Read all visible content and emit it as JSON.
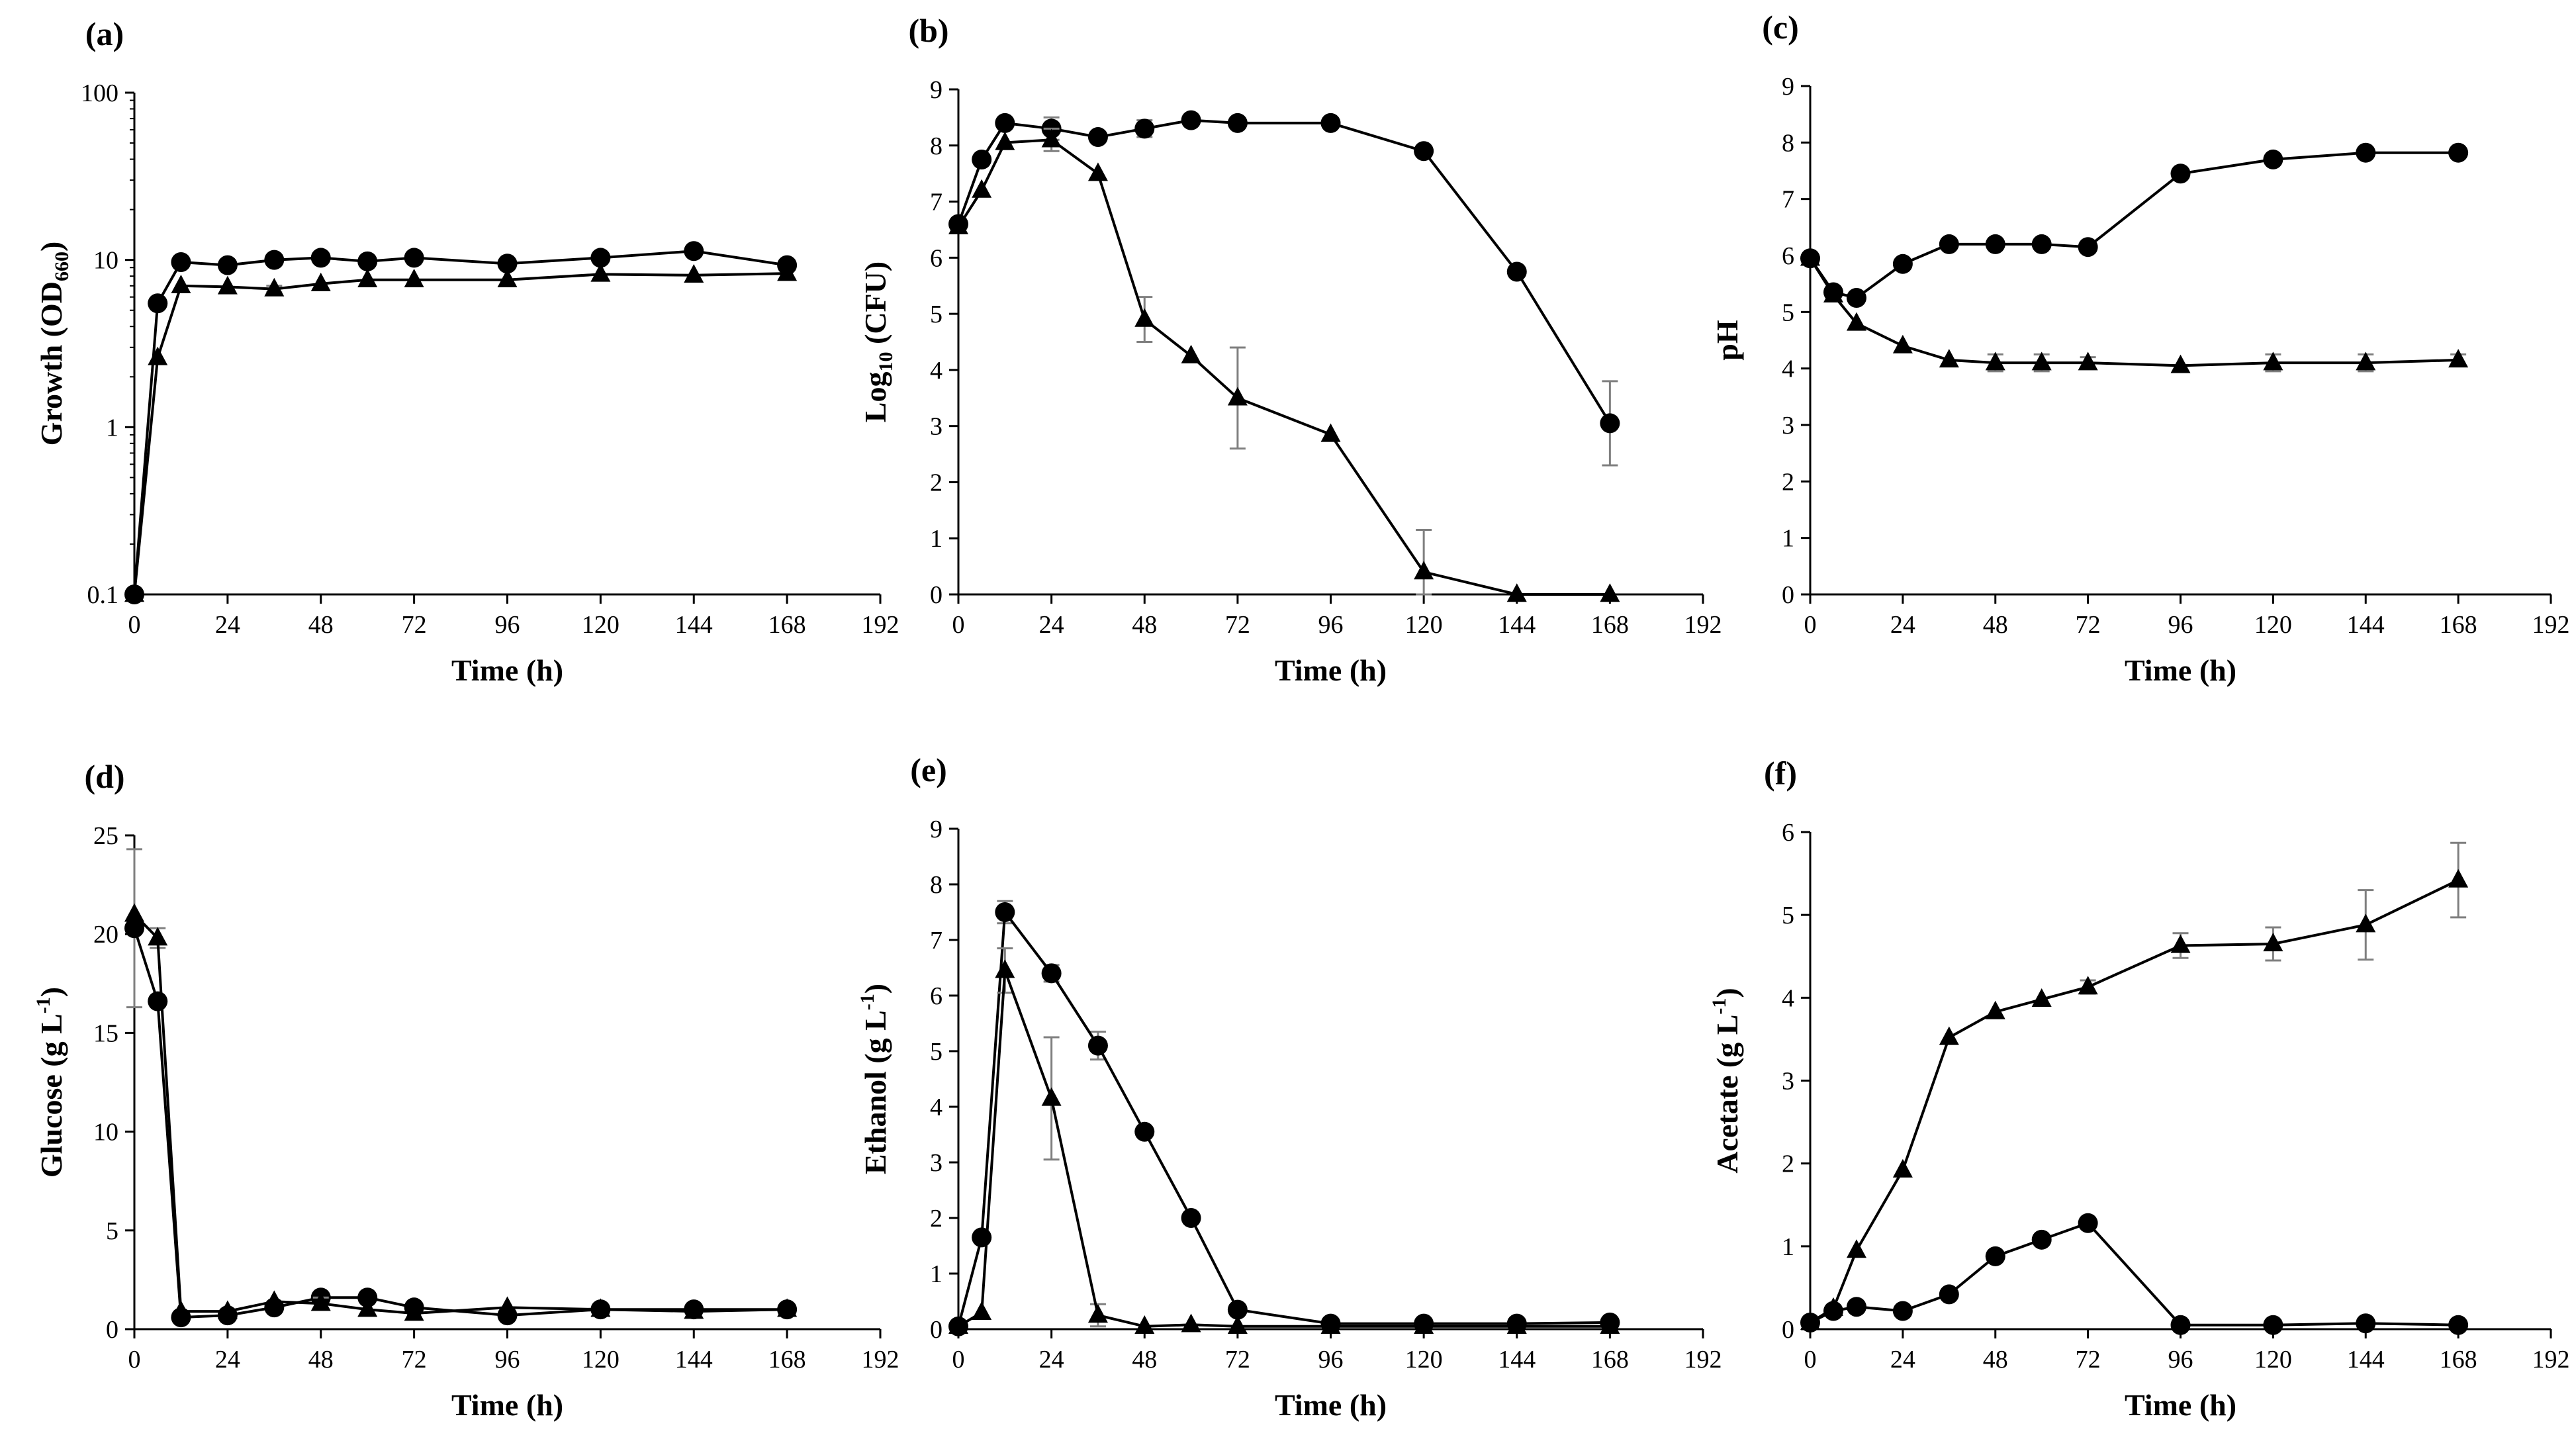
{
  "figure": {
    "colors": {
      "line": "#000000",
      "error_bar": "#7f7f7f",
      "marker": "#000000",
      "background": "#ffffff"
    }
  },
  "chart_data": [
    {
      "panel_label": "(a)",
      "type": "line",
      "ylabel_main": "Growth (OD",
      "ylabel_sub": "660",
      "ylabel_tail": ")",
      "xlabel": "Time (h)",
      "yscale": "log",
      "ylim": [
        0.1,
        100
      ],
      "yticks": [
        0.1,
        1,
        10,
        100
      ],
      "ytick_labels": [
        "0.1",
        "1",
        "10",
        "100"
      ],
      "xlim": [
        0,
        192
      ],
      "xticks": [
        0,
        24,
        48,
        72,
        96,
        120,
        144,
        168,
        192
      ],
      "xtick_labels": [
        "0",
        "24",
        "48",
        "72",
        "96",
        "120",
        "144",
        "168",
        "192"
      ],
      "series": [
        {
          "name": "circle series",
          "marker": "circle",
          "x": [
            0,
            6,
            12,
            24,
            36,
            48,
            60,
            72,
            96,
            120,
            144,
            168
          ],
          "y": [
            0.1,
            5.5,
            9.7,
            9.3,
            10.0,
            10.3,
            9.8,
            10.3,
            9.5,
            10.3,
            11.3,
            9.3
          ],
          "err": [
            0,
            0,
            0,
            0.6,
            0.6,
            0.6,
            0.5,
            0,
            0,
            0,
            0.5,
            0
          ]
        },
        {
          "name": "triangle series",
          "marker": "triangle",
          "x": [
            0,
            6,
            12,
            24,
            36,
            48,
            60,
            72,
            96,
            120,
            144,
            168
          ],
          "y": [
            0.1,
            2.6,
            7.0,
            6.9,
            6.7,
            7.2,
            7.6,
            7.6,
            7.6,
            8.2,
            8.1,
            8.3
          ],
          "err": [
            0,
            0,
            0,
            0,
            0.3,
            0,
            0,
            0,
            0,
            0,
            0,
            0
          ]
        }
      ]
    },
    {
      "panel_label": "(b)",
      "type": "line",
      "ylabel_main": "Log",
      "ylabel_sub": "10",
      "ylabel_tail": " (CFU)",
      "xlabel": "Time (h)",
      "yscale": "linear",
      "ylim": [
        0,
        9
      ],
      "yticks": [
        0,
        1,
        2,
        3,
        4,
        5,
        6,
        7,
        8,
        9
      ],
      "ytick_labels": [
        "0",
        "1",
        "2",
        "3",
        "4",
        "5",
        "6",
        "7",
        "8",
        "9"
      ],
      "xlim": [
        0,
        192
      ],
      "xticks": [
        0,
        24,
        48,
        72,
        96,
        120,
        144,
        168,
        192
      ],
      "xtick_labels": [
        "0",
        "24",
        "48",
        "72",
        "96",
        "120",
        "144",
        "168",
        "192"
      ],
      "series": [
        {
          "name": "circle series",
          "marker": "circle",
          "x": [
            0,
            6,
            12,
            24,
            36,
            48,
            60,
            72,
            96,
            120,
            144,
            168
          ],
          "y": [
            6.6,
            7.75,
            8.4,
            8.3,
            8.15,
            8.3,
            8.45,
            8.4,
            8.4,
            7.9,
            5.75,
            3.05
          ],
          "err": [
            0,
            0,
            0,
            0.2,
            0,
            0.15,
            0,
            0,
            0,
            0,
            0,
            0.75
          ]
        },
        {
          "name": "triangle series",
          "marker": "triangle",
          "x": [
            0,
            6,
            12,
            24,
            36,
            48,
            60,
            72,
            96,
            120,
            144,
            168
          ],
          "y": [
            6.55,
            7.2,
            8.05,
            8.1,
            7.5,
            4.9,
            4.25,
            3.5,
            2.85,
            0.4,
            0.0,
            0.0
          ],
          "err": [
            0,
            0,
            0,
            0.2,
            0,
            0.4,
            0,
            0.9,
            0,
            0.75,
            0,
            0
          ]
        }
      ]
    },
    {
      "panel_label": "(c)",
      "type": "line",
      "ylabel_main": "pH",
      "ylabel_sub": "",
      "ylabel_tail": "",
      "xlabel": "Time (h)",
      "yscale": "linear",
      "ylim": [
        0,
        9
      ],
      "yticks": [
        0,
        1,
        2,
        3,
        4,
        5,
        6,
        7,
        8,
        9
      ],
      "ytick_labels": [
        "0",
        "1",
        "2",
        "3",
        "4",
        "5",
        "6",
        "7",
        "8",
        "9"
      ],
      "xlim": [
        0,
        192
      ],
      "xticks": [
        0,
        24,
        48,
        72,
        96,
        120,
        144,
        168,
        192
      ],
      "xtick_labels": [
        "0",
        "24",
        "48",
        "72",
        "96",
        "120",
        "144",
        "168",
        "192"
      ],
      "series": [
        {
          "name": "circle series",
          "marker": "circle",
          "x": [
            0,
            6,
            12,
            24,
            36,
            48,
            60,
            72,
            96,
            120,
            144,
            168
          ],
          "y": [
            5.95,
            5.35,
            5.25,
            5.85,
            6.2,
            6.2,
            6.2,
            6.15,
            7.45,
            7.7,
            7.82,
            7.82
          ],
          "err": [
            0,
            0,
            0,
            0,
            0,
            0,
            0,
            0,
            0,
            0,
            0,
            0
          ]
        },
        {
          "name": "triangle series",
          "marker": "triangle",
          "x": [
            0,
            6,
            12,
            24,
            36,
            48,
            60,
            72,
            96,
            120,
            144,
            168
          ],
          "y": [
            5.95,
            5.3,
            4.8,
            4.4,
            4.15,
            4.1,
            4.1,
            4.1,
            4.05,
            4.1,
            4.1,
            4.15
          ],
          "err": [
            0,
            0,
            0,
            0,
            0,
            0.15,
            0.15,
            0.1,
            0,
            0.15,
            0.15,
            0.1
          ]
        }
      ]
    },
    {
      "panel_label": "(d)",
      "type": "line",
      "ylabel_main": "Glucose (g L",
      "ylabel_sup": "-1",
      "ylabel_tail": ")",
      "xlabel": "Time (h)",
      "yscale": "linear",
      "ylim": [
        0,
        25
      ],
      "yticks": [
        0,
        5,
        10,
        15,
        20,
        25
      ],
      "ytick_labels": [
        "0",
        "5",
        "10",
        "15",
        "20",
        "25"
      ],
      "xlim": [
        0,
        192
      ],
      "xticks": [
        0,
        24,
        48,
        72,
        96,
        120,
        144,
        168,
        192
      ],
      "xtick_labels": [
        "0",
        "24",
        "48",
        "72",
        "96",
        "120",
        "144",
        "168",
        "192"
      ],
      "series": [
        {
          "name": "circle series",
          "marker": "circle",
          "x": [
            0,
            6,
            12,
            24,
            36,
            48,
            60,
            72,
            96,
            120,
            144,
            168
          ],
          "y": [
            20.3,
            16.6,
            0.6,
            0.7,
            1.1,
            1.6,
            1.6,
            1.1,
            0.7,
            1.0,
            1.0,
            1.0
          ],
          "err": [
            4.0,
            0,
            0,
            0,
            0,
            0,
            0,
            0,
            0,
            0,
            0,
            0
          ]
        },
        {
          "name": "triangle series",
          "marker": "triangle",
          "x": [
            0,
            6,
            12,
            24,
            36,
            48,
            60,
            72,
            96,
            120,
            144,
            168
          ],
          "y": [
            21.0,
            19.8,
            0.9,
            0.9,
            1.4,
            1.3,
            1.0,
            0.8,
            1.1,
            1.0,
            0.9,
            1.0
          ],
          "err": [
            0,
            0.5,
            0,
            0,
            0,
            0.3,
            0,
            0,
            0,
            0,
            0,
            0
          ]
        }
      ]
    },
    {
      "panel_label": "(e)",
      "type": "line",
      "ylabel_main": "Ethanol (g L",
      "ylabel_sup": "-1",
      "ylabel_tail": ")",
      "xlabel": "Time (h)",
      "yscale": "linear",
      "ylim": [
        0,
        9
      ],
      "yticks": [
        0,
        1,
        2,
        3,
        4,
        5,
        6,
        7,
        8,
        9
      ],
      "ytick_labels": [
        "0",
        "1",
        "2",
        "3",
        "4",
        "5",
        "6",
        "7",
        "8",
        "9"
      ],
      "xlim": [
        0,
        192
      ],
      "xticks": [
        0,
        24,
        48,
        72,
        96,
        120,
        144,
        168,
        192
      ],
      "xtick_labels": [
        "0",
        "24",
        "48",
        "72",
        "96",
        "120",
        "144",
        "168",
        "192"
      ],
      "series": [
        {
          "name": "circle series",
          "marker": "circle",
          "x": [
            0,
            6,
            12,
            24,
            36,
            48,
            60,
            72,
            96,
            120,
            144,
            168
          ],
          "y": [
            0.05,
            1.65,
            7.5,
            6.4,
            5.1,
            3.55,
            2.0,
            0.35,
            0.1,
            0.1,
            0.1,
            0.12
          ],
          "err": [
            0,
            0,
            0.2,
            0.15,
            0.25,
            0,
            0,
            0,
            0,
            0,
            0,
            0
          ]
        },
        {
          "name": "triangle series",
          "marker": "triangle",
          "x": [
            0,
            6,
            12,
            24,
            36,
            48,
            60,
            72,
            96,
            120,
            144,
            168
          ],
          "y": [
            0.05,
            0.3,
            6.45,
            4.15,
            0.25,
            0.05,
            0.08,
            0.05,
            0.05,
            0.05,
            0.05,
            0.05
          ],
          "err": [
            0,
            0,
            0.4,
            1.1,
            0.2,
            0,
            0,
            0,
            0,
            0,
            0,
            0
          ]
        }
      ]
    },
    {
      "panel_label": "(f)",
      "type": "line",
      "ylabel_main": "Acetate (g L",
      "ylabel_sup": "-1",
      "ylabel_tail": ")",
      "xlabel": "Time (h)",
      "yscale": "linear",
      "ylim": [
        0,
        6
      ],
      "yticks": [
        0,
        1,
        2,
        3,
        4,
        5,
        6
      ],
      "ytick_labels": [
        "0",
        "1",
        "2",
        "3",
        "4",
        "5",
        "6"
      ],
      "xlim": [
        0,
        192
      ],
      "xticks": [
        0,
        24,
        48,
        72,
        96,
        120,
        144,
        168,
        192
      ],
      "xtick_labels": [
        "0",
        "24",
        "48",
        "72",
        "96",
        "120",
        "144",
        "168",
        "192"
      ],
      "series": [
        {
          "name": "circle series",
          "marker": "circle",
          "x": [
            0,
            6,
            12,
            24,
            36,
            48,
            60,
            72,
            96,
            120,
            144,
            168
          ],
          "y": [
            0.08,
            0.22,
            0.27,
            0.22,
            0.42,
            0.88,
            1.08,
            1.28,
            0.05,
            0.05,
            0.07,
            0.05
          ],
          "err": [
            0,
            0,
            0,
            0,
            0,
            0,
            0,
            0,
            0,
            0,
            0,
            0
          ]
        },
        {
          "name": "triangle series",
          "marker": "triangle",
          "x": [
            0,
            6,
            12,
            24,
            36,
            48,
            60,
            72,
            96,
            120,
            144,
            168
          ],
          "y": [
            0.08,
            0.25,
            0.95,
            1.92,
            3.52,
            3.83,
            3.98,
            4.13,
            4.63,
            4.65,
            4.88,
            5.42
          ],
          "err": [
            0,
            0,
            0,
            0,
            0,
            0,
            0,
            0.08,
            0.15,
            0.2,
            0.42,
            0.45
          ]
        }
      ]
    }
  ]
}
